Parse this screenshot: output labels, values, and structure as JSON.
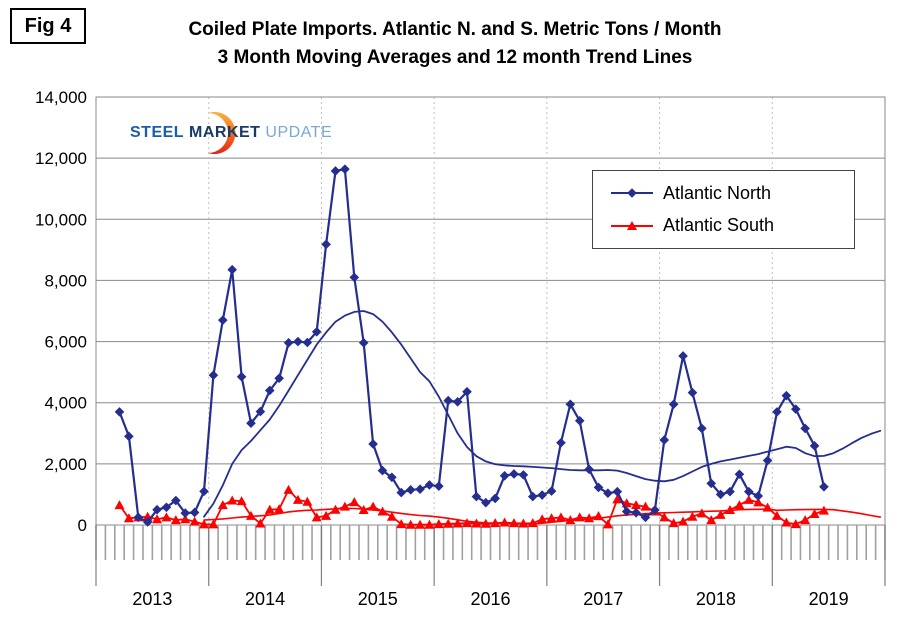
{
  "fig_label": "Fig 4",
  "title_line1": "Coiled Plate Imports. Atlantic N. and S. Metric Tons / Month",
  "title_line2": "3 Month Moving Averages and 12 month Trend Lines",
  "logo": {
    "word1": "STEEL",
    "word2": "MARKET",
    "word3": "UPDATE"
  },
  "legend": [
    {
      "label": "Atlantic North",
      "color": "#252e8f",
      "marker": "diamond"
    },
    {
      "label": "Atlantic South",
      "color": "#ff0000",
      "marker": "triangle"
    }
  ],
  "colors": {
    "atlantic_north": "#252e8f",
    "atlantic_south": "#ff0000",
    "gridline": "#888888",
    "month_tick": "#a0a0a0",
    "year_divider": "#808080",
    "year_dotted": "#c0c0c0"
  },
  "chart_data": {
    "type": "line",
    "title": "Coiled Plate Imports. Atlantic N. and S. Metric Tons / Month — 3 Month Moving Averages and 12 month Trend Lines",
    "ylabel": "Metric Tons / Month",
    "ylim": [
      0,
      14000
    ],
    "ytick_step": 2000,
    "ytick_labels": [
      "0",
      "2,000",
      "4,000",
      "6,000",
      "8,000",
      "10,000",
      "12,000",
      "14,000"
    ],
    "years": [
      "2013",
      "2014",
      "2015",
      "2016",
      "2017",
      "2018",
      "2019"
    ],
    "grid": true,
    "legend_position": "upper right",
    "series": [
      {
        "name": "Atlantic North (3 month moving average)",
        "color": "#252e8f",
        "marker": "diamond",
        "width": 2.2,
        "start_month": "2013-03",
        "start_index": 2,
        "values": [
          3700,
          2900,
          250,
          100,
          500,
          580,
          800,
          390,
          410,
          1100,
          4900,
          6700,
          8350,
          4850,
          3330,
          3710,
          4400,
          4800,
          5960,
          6000,
          5970,
          6320,
          9180,
          11580,
          11640,
          8100,
          5960,
          2650,
          1780,
          1560,
          1060,
          1150,
          1170,
          1310,
          1270,
          4070,
          4030,
          4360,
          930,
          730,
          870,
          1610,
          1670,
          1640,
          930,
          980,
          1110,
          2690,
          3950,
          3410,
          1820,
          1230,
          1040,
          1090,
          440,
          400,
          250,
          490,
          2780,
          3950,
          5530,
          4330,
          3160,
          1360,
          1000,
          1090,
          1660,
          1090,
          950,
          2110,
          3700,
          4230,
          3790,
          3160,
          2590,
          1250
        ]
      },
      {
        "name": "Atlantic South (3 month moving average)",
        "color": "#ff0000",
        "marker": "triangle",
        "width": 1.8,
        "start_month": "2013-03",
        "start_index": 2,
        "values": [
          650,
          220,
          250,
          270,
          190,
          250,
          160,
          190,
          110,
          20,
          20,
          650,
          800,
          780,
          300,
          50,
          500,
          520,
          1150,
          820,
          760,
          250,
          300,
          500,
          600,
          750,
          490,
          600,
          440,
          270,
          30,
          10,
          10,
          10,
          30,
          40,
          50,
          60,
          50,
          40,
          60,
          80,
          60,
          50,
          60,
          190,
          220,
          250,
          160,
          250,
          220,
          290,
          20,
          840,
          710,
          650,
          600,
          440,
          250,
          60,
          110,
          270,
          380,
          160,
          330,
          490,
          650,
          820,
          740,
          570,
          300,
          80,
          30,
          160,
          360,
          470
        ]
      },
      {
        "name": "Atlantic North 12 month trend line",
        "color": "#252e8f",
        "marker": null,
        "width": 1.8,
        "start_month": "2013-12",
        "start_index": 11,
        "values": [
          270,
          700,
          1300,
          2000,
          2450,
          2750,
          3100,
          3450,
          3900,
          4400,
          4900,
          5400,
          5900,
          6300,
          6650,
          6850,
          6970,
          7000,
          6900,
          6650,
          6300,
          5900,
          5450,
          5000,
          4700,
          4200,
          3600,
          3000,
          2550,
          2250,
          2080,
          1990,
          1950,
          1930,
          1920,
          1900,
          1880,
          1860,
          1830,
          1800,
          1790,
          1790,
          1790,
          1800,
          1780,
          1700,
          1600,
          1500,
          1450,
          1430,
          1480,
          1600,
          1750,
          1900,
          2000,
          2080,
          2140,
          2200,
          2260,
          2320,
          2400,
          2480,
          2560,
          2520,
          2350,
          2250,
          2260,
          2350,
          2500,
          2680,
          2850,
          2980,
          3080
        ]
      },
      {
        "name": "Atlantic South 12 month trend line",
        "color": "#ff0000",
        "marker": null,
        "width": 1.6,
        "start_month": "2013-12",
        "start_index": 11,
        "values": [
          160,
          180,
          200,
          230,
          260,
          280,
          300,
          330,
          380,
          430,
          460,
          480,
          490,
          510,
          530,
          545,
          540,
          520,
          490,
          460,
          420,
          380,
          340,
          310,
          290,
          260,
          220,
          170,
          120,
          90,
          70,
          60,
          50,
          45,
          40,
          40,
          60,
          90,
          120,
          150,
          170,
          190,
          220,
          260,
          300,
          330,
          350,
          370,
          390,
          400,
          410,
          420,
          430,
          440,
          450,
          460,
          480,
          500,
          510,
          515,
          520,
          480,
          490,
          500,
          505,
          510,
          510,
          500,
          460,
          420,
          370,
          310,
          260
        ]
      }
    ]
  }
}
